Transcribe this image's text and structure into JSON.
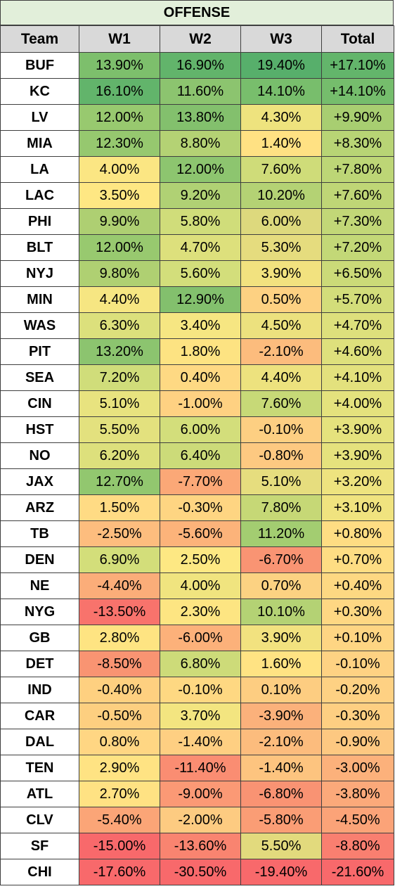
{
  "title": "OFFENSE",
  "columns": [
    "Team",
    "W1",
    "W2",
    "W3",
    "Total"
  ],
  "rows": [
    {
      "team": "BUF",
      "w1": "13.90%",
      "w2": "16.90%",
      "w3": "19.40%",
      "total": "+17.10%",
      "c": [
        "#7dbf6c",
        "#62b46b",
        "#57af6b",
        "#63b56b"
      ]
    },
    {
      "team": "KC",
      "w1": "16.10%",
      "w2": "11.60%",
      "w3": "14.10%",
      "total": "+14.10%",
      "c": [
        "#62b46b",
        "#8cc46f",
        "#78be6c",
        "#75bd6c"
      ]
    },
    {
      "team": "LV",
      "w1": "12.00%",
      "w2": "13.80%",
      "w3": "4.30%",
      "total": "+9.90%",
      "c": [
        "#98c96f",
        "#83c06d",
        "#eee37e",
        "#a8ce71"
      ]
    },
    {
      "team": "MIA",
      "w1": "12.30%",
      "w2": "8.80%",
      "w3": "1.40%",
      "total": "+8.30%",
      "c": [
        "#96c86f",
        "#b4d274",
        "#ffe183",
        "#b8d475"
      ]
    },
    {
      "team": "LA",
      "w1": "4.00%",
      "w2": "12.00%",
      "w3": "7.60%",
      "total": "+7.80%",
      "c": [
        "#fbe683",
        "#8dc56f",
        "#cfdc79",
        "#bdd676"
      ]
    },
    {
      "team": "LAC",
      "w1": "3.50%",
      "w2": "9.20%",
      "w3": "10.20%",
      "total": "+7.60%",
      "c": [
        "#fee783",
        "#b0d174",
        "#b4d274",
        "#bfd676"
      ]
    },
    {
      "team": "PHI",
      "w1": "9.90%",
      "w2": "5.80%",
      "w3": "6.00%",
      "total": "+7.30%",
      "c": [
        "#aecf72",
        "#d0dd7a",
        "#ddd97d",
        "#c2d777"
      ]
    },
    {
      "team": "BLT",
      "w1": "12.00%",
      "w2": "4.70%",
      "w3": "5.30%",
      "total": "+7.20%",
      "c": [
        "#98c96f",
        "#dde07c",
        "#e5dc7e",
        "#c3d877"
      ]
    },
    {
      "team": "NYJ",
      "w1": "9.80%",
      "w2": "5.60%",
      "w3": "3.90%",
      "total": "+6.50%",
      "c": [
        "#afd072",
        "#d3de7b",
        "#f2e27f",
        "#cbda78"
      ]
    },
    {
      "team": "MIN",
      "w1": "4.40%",
      "w2": "12.90%",
      "w3": "0.50%",
      "total": "+5.70%",
      "c": [
        "#f6e682",
        "#83c06d",
        "#fdd182",
        "#d3dd7a"
      ]
    },
    {
      "team": "WAS",
      "w1": "6.30%",
      "w2": "3.40%",
      "w3": "4.50%",
      "total": "+4.70%",
      "c": [
        "#dce07c",
        "#f6e682",
        "#ece17e",
        "#dde07c"
      ]
    },
    {
      "team": "PIT",
      "w1": "13.20%",
      "w2": "1.80%",
      "w3": "-2.10%",
      "total": "+4.60%",
      "c": [
        "#8cc46f",
        "#fde382",
        "#fcbc7d",
        "#dee07c"
      ]
    },
    {
      "team": "SEA",
      "w1": "7.20%",
      "w2": "0.40%",
      "w3": "4.40%",
      "total": "+4.10%",
      "c": [
        "#d0dd7a",
        "#fed983",
        "#ede27e",
        "#e3e17d"
      ]
    },
    {
      "team": "CIN",
      "w1": "5.10%",
      "w2": "-1.00%",
      "w3": "7.60%",
      "total": "+4.00%",
      "c": [
        "#e8e37f",
        "#fed182",
        "#c7d977",
        "#e4e27d"
      ]
    },
    {
      "team": "HST",
      "w1": "5.50%",
      "w2": "6.00%",
      "w3": "-0.10%",
      "total": "+3.90%",
      "c": [
        "#e3e17e",
        "#d3de7b",
        "#fdcf82",
        "#e5e27d"
      ]
    },
    {
      "team": "NO",
      "w1": "6.20%",
      "w2": "6.40%",
      "w3": "-0.80%",
      "total": "+3.90%",
      "c": [
        "#dde07c",
        "#ccdb79",
        "#fdc981",
        "#e5e27d"
      ]
    },
    {
      "team": "JAX",
      "w1": "12.70%",
      "w2": "-7.70%",
      "w3": "5.10%",
      "total": "+3.20%",
      "c": [
        "#92c76f",
        "#fba877",
        "#e6dd7e",
        "#eee37f"
      ]
    },
    {
      "team": "ARZ",
      "w1": "1.50%",
      "w2": "-0.30%",
      "w3": "7.80%",
      "total": "+3.10%",
      "c": [
        "#ffdb84",
        "#fed582",
        "#c6d876",
        "#f0e37f"
      ]
    },
    {
      "team": "TB",
      "w1": "-2.50%",
      "w2": "-5.60%",
      "w3": "11.20%",
      "total": "+0.80%",
      "c": [
        "#fdbd7e",
        "#fcb37a",
        "#a3cd71",
        "#fedd83"
      ]
    },
    {
      "team": "DEN",
      "w1": "6.90%",
      "w2": "2.50%",
      "w3": "-6.70%",
      "total": "+0.70%",
      "c": [
        "#d3de7a",
        "#fde883",
        "#f99473",
        "#fedd83"
      ]
    },
    {
      "team": "NE",
      "w1": "-4.40%",
      "w2": "4.00%",
      "w3": "0.70%",
      "total": "+0.40%",
      "c": [
        "#fbad79",
        "#f0e47f",
        "#fcd282",
        "#fdd882"
      ]
    },
    {
      "team": "NYG",
      "w1": "-13.50%",
      "w2": "2.30%",
      "w3": "10.10%",
      "total": "+0.30%",
      "c": [
        "#f8736c",
        "#fde582",
        "#b4d274",
        "#fed783"
      ]
    },
    {
      "team": "GB",
      "w1": "2.80%",
      "w2": "-6.00%",
      "w3": "3.90%",
      "total": "+0.10%",
      "c": [
        "#fee482",
        "#fcb17a",
        "#f2e27f",
        "#fed583"
      ]
    },
    {
      "team": "DET",
      "w1": "-8.50%",
      "w2": "6.80%",
      "w3": "1.60%",
      "total": "-0.10%",
      "c": [
        "#f99472",
        "#cddb79",
        "#ffe383",
        "#fed283"
      ]
    },
    {
      "team": "IND",
      "w1": "-0.40%",
      "w2": "-0.10%",
      "w3": "0.10%",
      "total": "-0.20%",
      "c": [
        "#fed080",
        "#fed882",
        "#fdcd81",
        "#fed183"
      ]
    },
    {
      "team": "CAR",
      "w1": "-0.50%",
      "w2": "3.70%",
      "w3": "-3.90%",
      "total": "-0.30%",
      "c": [
        "#fdcf80",
        "#f3e580",
        "#fbb17b",
        "#fecf82"
      ]
    },
    {
      "team": "DAL",
      "w1": "0.80%",
      "w2": "-1.40%",
      "w3": "-2.10%",
      "total": "-0.90%",
      "c": [
        "#ffd683",
        "#fecf82",
        "#fcbc7d",
        "#fdc881"
      ]
    },
    {
      "team": "TEN",
      "w1": "2.90%",
      "w2": "-11.40%",
      "w3": "-1.40%",
      "total": "-3.00%",
      "c": [
        "#ffe383",
        "#fa8d72",
        "#fdc47f",
        "#fcb17b"
      ]
    },
    {
      "team": "ATL",
      "w1": "2.70%",
      "w2": "-9.00%",
      "w3": "-6.80%",
      "total": "-3.80%",
      "c": [
        "#ffe283",
        "#fb9975",
        "#f99373",
        "#fba97a"
      ]
    },
    {
      "team": "CLV",
      "w1": "-5.40%",
      "w2": "-2.00%",
      "w3": "-5.80%",
      "total": "-4.50%",
      "c": [
        "#fba577",
        "#fdcb81",
        "#fa9d75",
        "#fba378"
      ]
    },
    {
      "team": "SF",
      "w1": "-15.00%",
      "w2": "-13.60%",
      "w3": "5.50%",
      "total": "-8.80%",
      "c": [
        "#f8696b",
        "#f98470",
        "#e2da7d",
        "#f97f70"
      ]
    },
    {
      "team": "CHI",
      "w1": "-17.60%",
      "w2": "-30.50%",
      "w3": "-19.40%",
      "total": "-21.60%",
      "c": [
        "#f8696b",
        "#f8696b",
        "#f8696b",
        "#f8696b"
      ]
    }
  ]
}
